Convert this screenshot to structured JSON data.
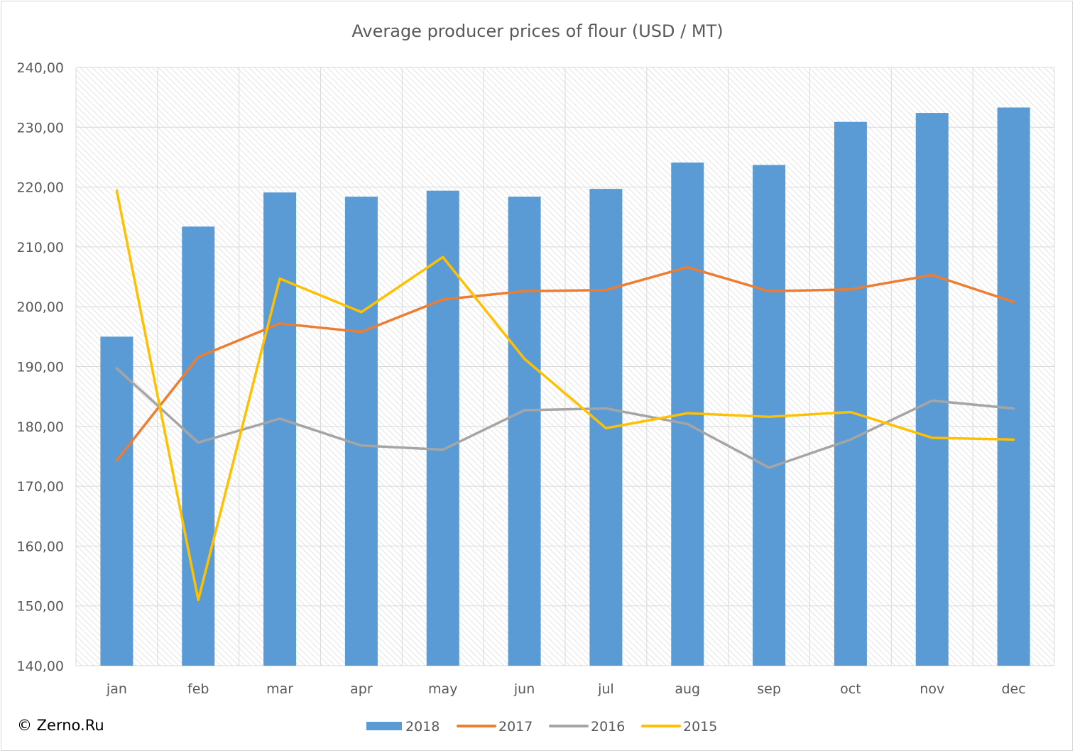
{
  "chart_data": {
    "type": "bar",
    "title": "Average producer prices of flour (USD / MT)",
    "xlabel": "",
    "ylabel": "",
    "categories": [
      "jan",
      "feb",
      "mar",
      "apr",
      "may",
      "jun",
      "jul",
      "aug",
      "sep",
      "oct",
      "nov",
      "dec"
    ],
    "ylim": [
      140,
      240
    ],
    "yticks": [
      "140,00",
      "150,00",
      "160,00",
      "170,00",
      "180,00",
      "190,00",
      "200,00",
      "210,00",
      "220,00",
      "230,00",
      "240,00"
    ],
    "grid": true,
    "legend_position": "bottom",
    "series": [
      {
        "name": "2018",
        "kind": "bar",
        "color": "#5b9bd5",
        "values": [
          195.0,
          213.4,
          219.1,
          218.4,
          219.4,
          218.4,
          219.7,
          224.1,
          223.7,
          230.9,
          232.4,
          233.3
        ]
      },
      {
        "name": "2017",
        "kind": "line",
        "color": "#ed7d31",
        "values": [
          174.3,
          191.6,
          197.2,
          195.8,
          201.2,
          202.6,
          202.8,
          206.6,
          202.6,
          202.9,
          205.3,
          200.8
        ]
      },
      {
        "name": "2016",
        "kind": "line",
        "color": "#a5a5a5",
        "values": [
          189.7,
          177.3,
          181.3,
          176.8,
          176.1,
          182.7,
          183.0,
          180.4,
          173.1,
          177.8,
          184.3,
          183.0
        ]
      },
      {
        "name": "2015",
        "kind": "line",
        "color": "#ffc000",
        "values": [
          219.4,
          151.0,
          204.7,
          199.1,
          208.3,
          191.3,
          179.7,
          182.2,
          181.6,
          182.4,
          178.1,
          177.8
        ]
      }
    ]
  },
  "copyright": "© Zerno.Ru"
}
